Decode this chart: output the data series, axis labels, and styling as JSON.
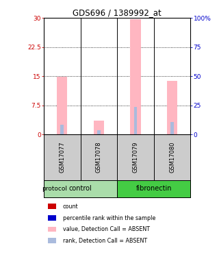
{
  "title": "GDS696 / 1389992_at",
  "samples": [
    "GSM17077",
    "GSM17078",
    "GSM17079",
    "GSM17080"
  ],
  "bar_value_absent": [
    14.8,
    3.5,
    29.7,
    13.8
  ],
  "bar_rank_absent": [
    2.5,
    1.0,
    7.0,
    3.2
  ],
  "ylim_left": [
    0,
    30
  ],
  "ylim_right": [
    0,
    100
  ],
  "yticks_left": [
    0,
    7.5,
    15,
    22.5,
    30
  ],
  "yticks_right": [
    0,
    25,
    50,
    75,
    100
  ],
  "ytick_labels_left": [
    "0",
    "7.5",
    "15",
    "22.5",
    "30"
  ],
  "ytick_labels_right": [
    "0",
    "25",
    "50",
    "75",
    "100%"
  ],
  "color_value_absent": "#FFB6C1",
  "color_rank_absent": "#AABBDD",
  "color_count": "#CC0000",
  "color_rank": "#0000CC",
  "group_info": [
    {
      "label": "control",
      "xmin": -0.5,
      "xmax": 1.5,
      "color": "#AADDAA"
    },
    {
      "label": "fibronectin",
      "xmin": 1.5,
      "xmax": 3.5,
      "color": "#44CC44"
    }
  ],
  "legend_items": [
    {
      "label": "count",
      "color": "#CC0000"
    },
    {
      "label": "percentile rank within the sample",
      "color": "#0000CC"
    },
    {
      "label": "value, Detection Call = ABSENT",
      "color": "#FFB6C1"
    },
    {
      "label": "rank, Detection Call = ABSENT",
      "color": "#AABBDD"
    }
  ],
  "protocol_label": "protocol",
  "background_color": "#ffffff",
  "sample_box_color": "#cccccc"
}
